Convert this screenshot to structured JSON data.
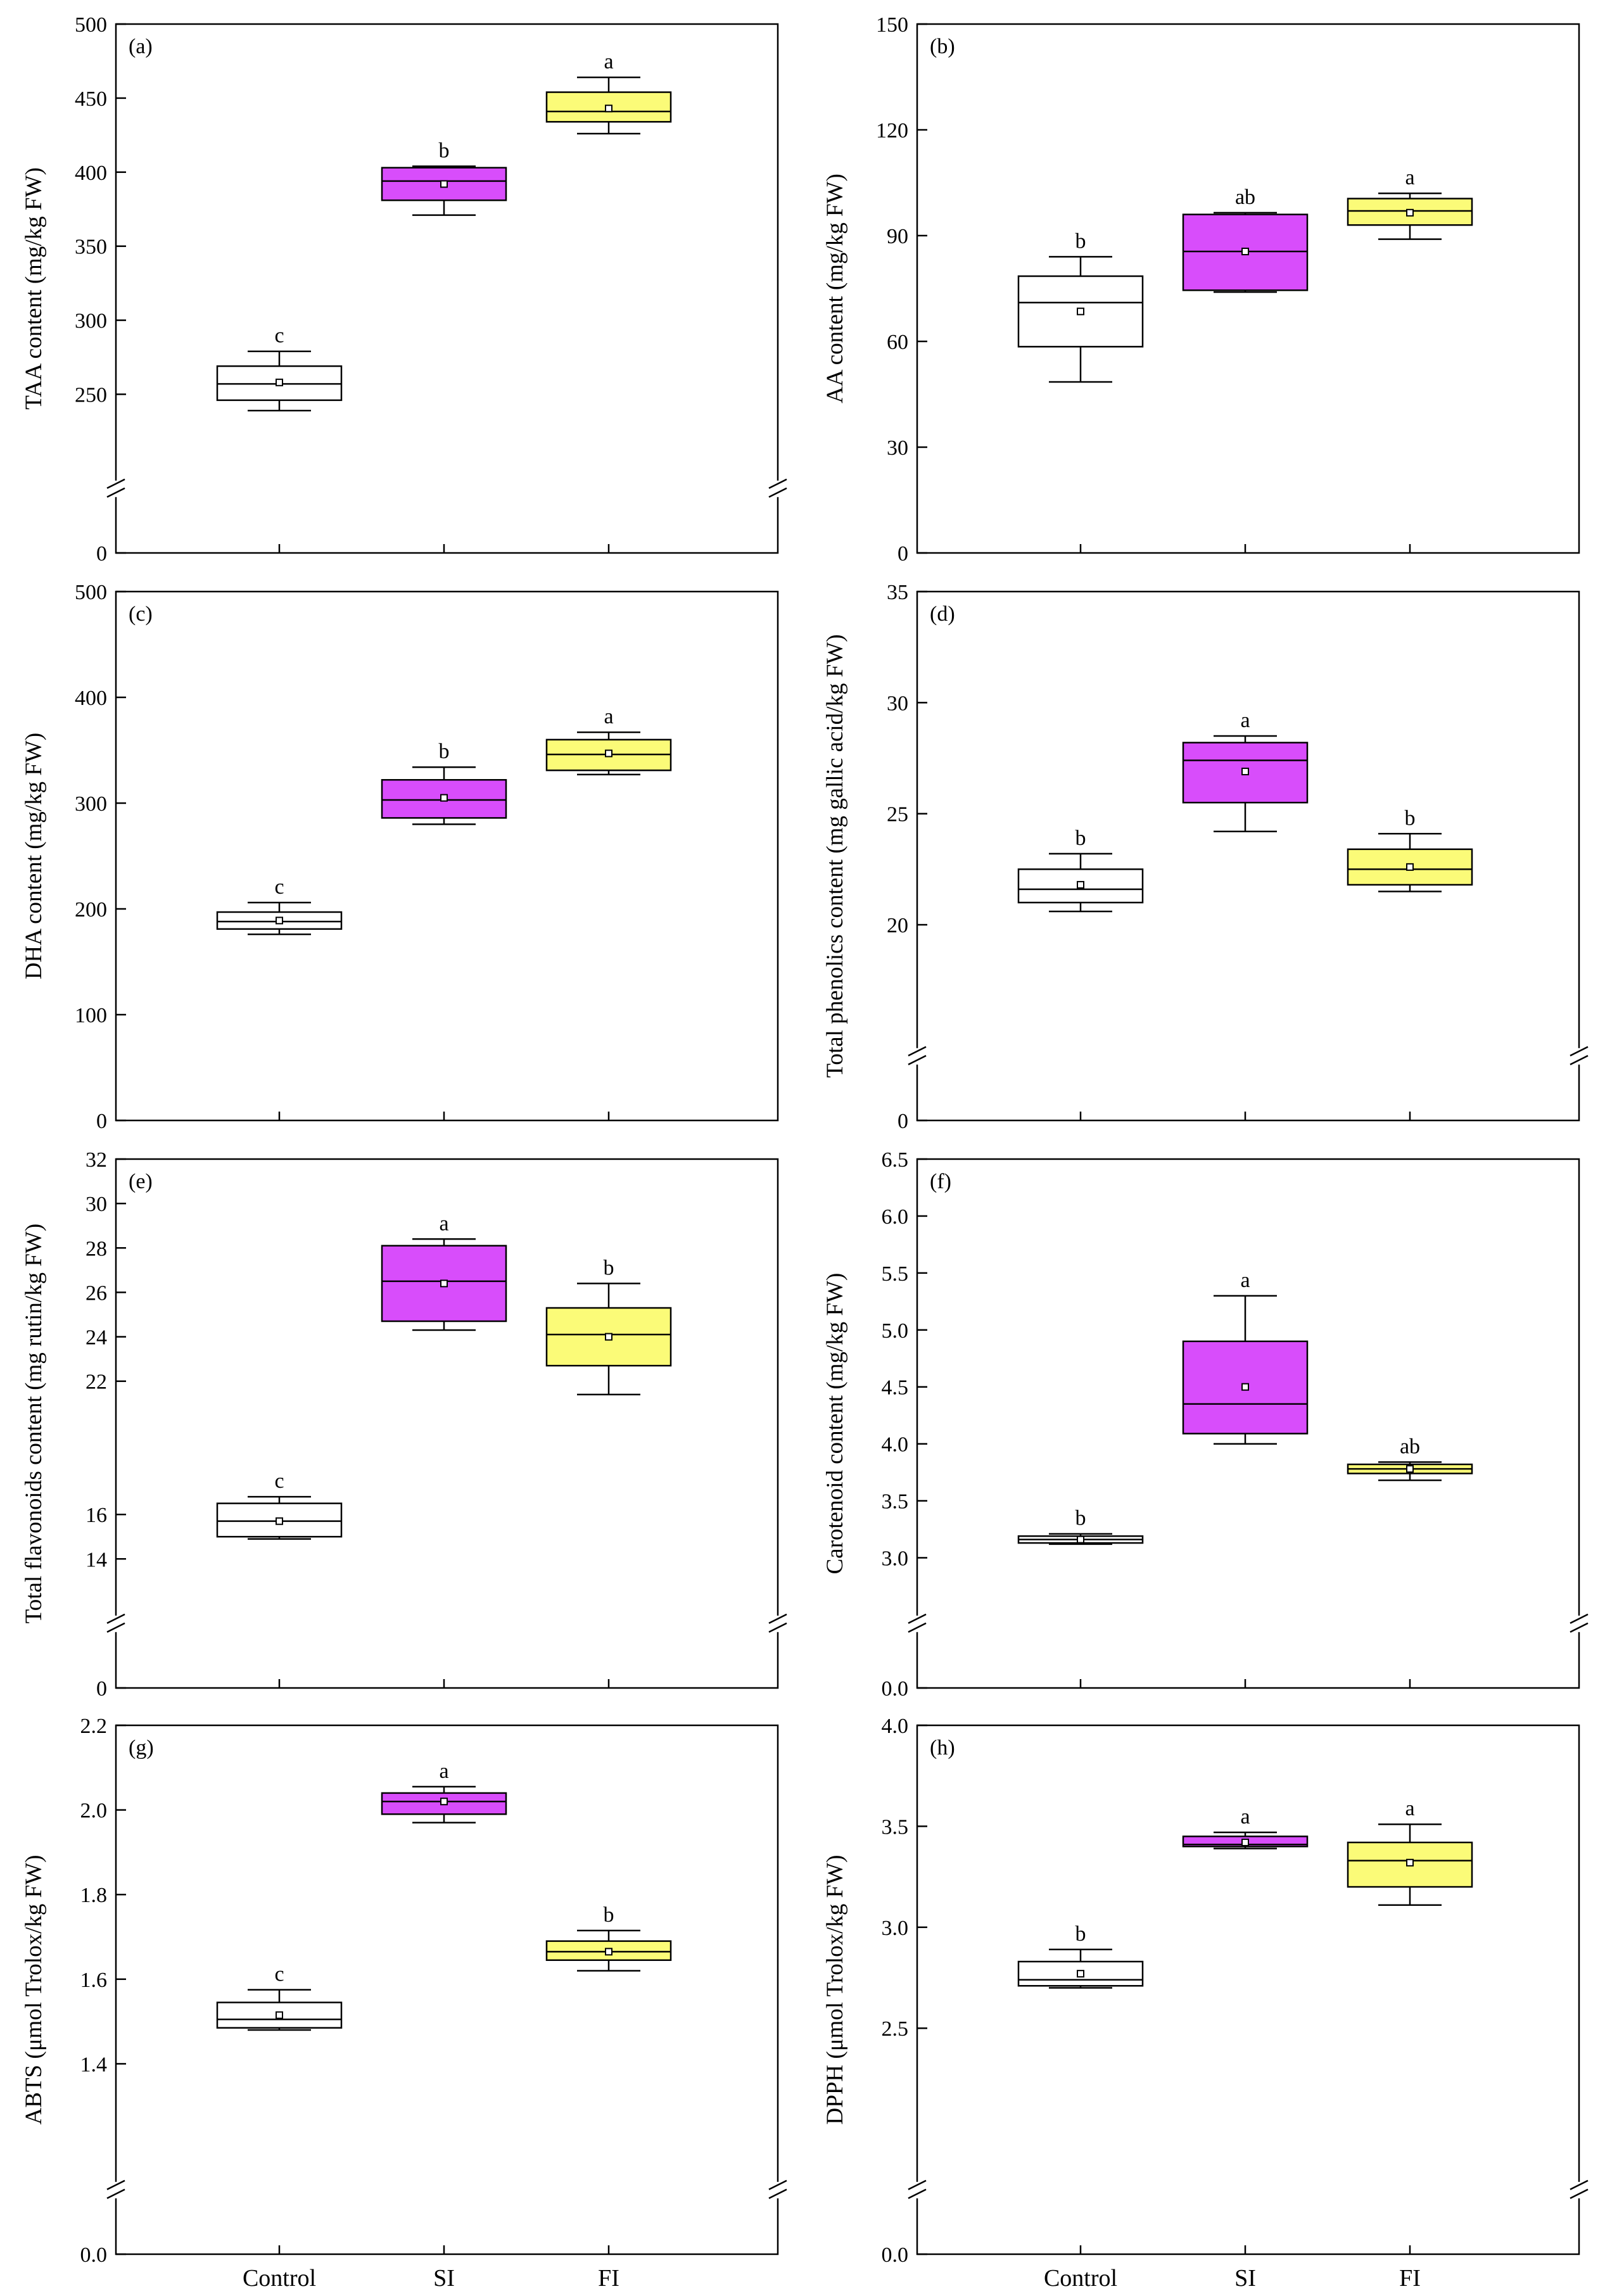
{
  "figure": {
    "categories": [
      "Control",
      "SI",
      "FI"
    ],
    "colors": {
      "Control": "#ffffff",
      "SI": "#d84dfb",
      "FI": "#fbfb78"
    }
  },
  "chart_data": [
    {
      "type": "box",
      "panel": "(a)",
      "ylabel": "TAA  content (mg/kg FW)",
      "ylim": [
        0,
        500
      ],
      "axis_break": [
        0,
        200
      ],
      "yticks": [
        {
          "v": 0,
          "label": "0"
        },
        {
          "v": 250,
          "label": "250"
        },
        {
          "v": 300,
          "label": "300"
        },
        {
          "v": 350,
          "label": "350"
        },
        {
          "v": 400,
          "label": "400"
        },
        {
          "v": 450,
          "label": "450"
        },
        {
          "v": 500,
          "label": "500"
        }
      ],
      "boxes": [
        {
          "category": "Control",
          "min": 239,
          "q1": 246,
          "median": 257,
          "q3": 269,
          "max": 279,
          "mean": 258,
          "sig": "c"
        },
        {
          "category": "SI",
          "min": 371,
          "q1": 381,
          "median": 394,
          "q3": 403,
          "max": 404,
          "mean": 392,
          "sig": "b"
        },
        {
          "category": "FI",
          "min": 426,
          "q1": 434,
          "median": 441,
          "q3": 454,
          "max": 464,
          "mean": 443,
          "sig": "a"
        }
      ]
    },
    {
      "type": "box",
      "panel": "(b)",
      "ylabel": "AA  content (mg/kg FW)",
      "ylim": [
        0,
        150
      ],
      "axis_break": null,
      "yticks": [
        {
          "v": 0,
          "label": "0"
        },
        {
          "v": 30,
          "label": "30"
        },
        {
          "v": 60,
          "label": "60"
        },
        {
          "v": 90,
          "label": "90"
        },
        {
          "v": 120,
          "label": "120"
        },
        {
          "v": 150,
          "label": "150"
        }
      ],
      "boxes": [
        {
          "category": "Control",
          "min": 48.5,
          "q1": 58.5,
          "median": 71,
          "q3": 78.5,
          "max": 84,
          "mean": 68.5,
          "sig": "b"
        },
        {
          "category": "SI",
          "min": 74,
          "q1": 74.5,
          "median": 85.5,
          "q3": 96,
          "max": 96.5,
          "mean": 85.5,
          "sig": "ab"
        },
        {
          "category": "FI",
          "min": 89,
          "q1": 93,
          "median": 97,
          "q3": 100.5,
          "max": 102,
          "mean": 96.5,
          "sig": "a"
        }
      ]
    },
    {
      "type": "box",
      "panel": "(c)",
      "ylabel": "DHA  content (mg/kg FW)",
      "ylim": [
        0,
        500
      ],
      "axis_break": null,
      "yticks": [
        {
          "v": 0,
          "label": "0"
        },
        {
          "v": 100,
          "label": "100"
        },
        {
          "v": 200,
          "label": "200"
        },
        {
          "v": 300,
          "label": "300"
        },
        {
          "v": 400,
          "label": "400"
        },
        {
          "v": 500,
          "label": "500"
        }
      ],
      "boxes": [
        {
          "category": "Control",
          "min": 176,
          "q1": 181,
          "median": 188,
          "q3": 197,
          "max": 206,
          "mean": 189,
          "sig": "c"
        },
        {
          "category": "SI",
          "min": 280,
          "q1": 286,
          "median": 303,
          "q3": 322,
          "max": 334,
          "mean": 305,
          "sig": "b"
        },
        {
          "category": "FI",
          "min": 327,
          "q1": 331,
          "median": 346,
          "q3": 360,
          "max": 367,
          "mean": 347,
          "sig": "a"
        }
      ]
    },
    {
      "type": "box",
      "panel": "(d)",
      "ylabel": "Total phenolics content (mg gallic acid/kg FW)",
      "ylim": [
        0,
        35
      ],
      "axis_break": [
        0,
        15
      ],
      "yticks": [
        {
          "v": 0,
          "label": "0"
        },
        {
          "v": 20,
          "label": "20"
        },
        {
          "v": 25,
          "label": "25"
        },
        {
          "v": 30,
          "label": "30"
        },
        {
          "v": 35,
          "label": "35"
        }
      ],
      "boxes": [
        {
          "category": "Control",
          "min": 20.6,
          "q1": 21.0,
          "median": 21.6,
          "q3": 22.5,
          "max": 23.2,
          "mean": 21.8,
          "sig": "b"
        },
        {
          "category": "SI",
          "min": 24.2,
          "q1": 25.5,
          "median": 27.4,
          "q3": 28.2,
          "max": 28.5,
          "mean": 26.9,
          "sig": "a"
        },
        {
          "category": "FI",
          "min": 21.5,
          "q1": 21.8,
          "median": 22.5,
          "q3": 23.4,
          "max": 24.1,
          "mean": 22.6,
          "sig": "b"
        }
      ]
    },
    {
      "type": "box",
      "panel": "(e)",
      "ylabel": "Total flavonoids content (mg rutin/kg FW)",
      "ylim": [
        0,
        32
      ],
      "axis_break": [
        0,
        12
      ],
      "yticks": [
        {
          "v": 0,
          "label": "0"
        },
        {
          "v": 14,
          "label": "14"
        },
        {
          "v": 16,
          "label": "16"
        },
        {
          "v": 22,
          "label": "22"
        },
        {
          "v": 24,
          "label": "24"
        },
        {
          "v": 26,
          "label": "26"
        },
        {
          "v": 28,
          "label": "28"
        },
        {
          "v": 30,
          "label": "30"
        },
        {
          "v": 32,
          "label": "32"
        }
      ],
      "boxes": [
        {
          "category": "Control",
          "min": 14.9,
          "q1": 15.0,
          "median": 15.7,
          "q3": 16.5,
          "max": 16.8,
          "mean": 15.7,
          "sig": "c"
        },
        {
          "category": "SI",
          "min": 24.3,
          "q1": 24.7,
          "median": 26.5,
          "q3": 28.1,
          "max": 28.4,
          "mean": 26.4,
          "sig": "a"
        },
        {
          "category": "FI",
          "min": 21.4,
          "q1": 22.7,
          "median": 24.1,
          "q3": 25.3,
          "max": 26.4,
          "mean": 24.0,
          "sig": "b"
        }
      ]
    },
    {
      "type": "box",
      "panel": "(f)",
      "ylabel": "Carotenoid  content (mg/kg FW)",
      "ylim": [
        0,
        6.5
      ],
      "axis_break": [
        0,
        2.6
      ],
      "yticks": [
        {
          "v": 0,
          "label": "0.0"
        },
        {
          "v": 3.0,
          "label": "3.0"
        },
        {
          "v": 3.5,
          "label": "3.5"
        },
        {
          "v": 4.0,
          "label": "4.0"
        },
        {
          "v": 4.5,
          "label": "4.5"
        },
        {
          "v": 5.0,
          "label": "5.0"
        },
        {
          "v": 5.5,
          "label": "5.5"
        },
        {
          "v": 6.0,
          "label": "6.0"
        },
        {
          "v": 6.5,
          "label": "6.5"
        }
      ],
      "boxes": [
        {
          "category": "Control",
          "min": 3.12,
          "q1": 3.13,
          "median": 3.16,
          "q3": 3.19,
          "max": 3.21,
          "mean": 3.16,
          "sig": "b"
        },
        {
          "category": "SI",
          "min": 4.0,
          "q1": 4.09,
          "median": 4.35,
          "q3": 4.9,
          "max": 5.3,
          "mean": 4.5,
          "sig": "a"
        },
        {
          "category": "FI",
          "min": 3.68,
          "q1": 3.74,
          "median": 3.78,
          "q3": 3.82,
          "max": 3.84,
          "mean": 3.78,
          "sig": "ab"
        }
      ]
    },
    {
      "type": "box",
      "panel": "(g)",
      "ylabel": "ABTS (μmol Trolox/kg FW)",
      "ylim": [
        0,
        2.2
      ],
      "axis_break": [
        0,
        1.15
      ],
      "yticks": [
        {
          "v": 0,
          "label": "0.0"
        },
        {
          "v": 1.4,
          "label": "1.4"
        },
        {
          "v": 1.6,
          "label": "1.6"
        },
        {
          "v": 1.8,
          "label": "1.8"
        },
        {
          "v": 2.0,
          "label": "2.0"
        },
        {
          "v": 2.2,
          "label": "2.2"
        }
      ],
      "boxes": [
        {
          "category": "Control",
          "min": 1.48,
          "q1": 1.485,
          "median": 1.505,
          "q3": 1.545,
          "max": 1.575,
          "mean": 1.515,
          "sig": "c"
        },
        {
          "category": "SI",
          "min": 1.97,
          "q1": 1.99,
          "median": 2.02,
          "q3": 2.04,
          "max": 2.055,
          "mean": 2.02,
          "sig": "a"
        },
        {
          "category": "FI",
          "min": 1.62,
          "q1": 1.645,
          "median": 1.665,
          "q3": 1.69,
          "max": 1.715,
          "mean": 1.665,
          "sig": "b"
        }
      ]
    },
    {
      "type": "box",
      "panel": "(h)",
      "ylabel": "DPPH (μmol Trolox/kg FW)",
      "ylim": [
        0,
        4.0
      ],
      "axis_break": [
        0,
        1.8
      ],
      "yticks": [
        {
          "v": 0,
          "label": "0.0"
        },
        {
          "v": 2.5,
          "label": "2.5"
        },
        {
          "v": 3.0,
          "label": "3.0"
        },
        {
          "v": 3.5,
          "label": "3.5"
        },
        {
          "v": 4.0,
          "label": "4.0"
        }
      ],
      "boxes": [
        {
          "category": "Control",
          "min": 2.7,
          "q1": 2.71,
          "median": 2.74,
          "q3": 2.83,
          "max": 2.89,
          "mean": 2.77,
          "sig": "b"
        },
        {
          "category": "SI",
          "min": 3.39,
          "q1": 3.4,
          "median": 3.41,
          "q3": 3.45,
          "max": 3.47,
          "mean": 3.42,
          "sig": "a"
        },
        {
          "category": "FI",
          "min": 3.11,
          "q1": 3.2,
          "median": 3.33,
          "q3": 3.42,
          "max": 3.51,
          "mean": 3.32,
          "sig": "a"
        }
      ]
    }
  ]
}
